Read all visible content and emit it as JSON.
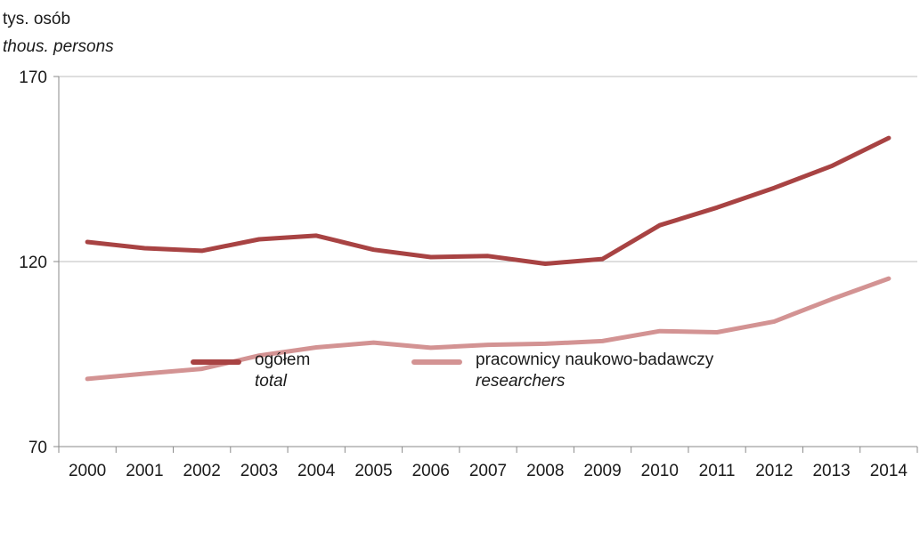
{
  "chart_data": {
    "type": "line",
    "unit_label": {
      "pl": "tys. osób",
      "en": "thous. persons"
    },
    "x": [
      "2000",
      "2001",
      "2002",
      "2003",
      "2004",
      "2005",
      "2006",
      "2007",
      "2008",
      "2009",
      "2010",
      "2011",
      "2012",
      "2013",
      "2014"
    ],
    "ylim": [
      70,
      170
    ],
    "yticks": [
      "70",
      "120",
      "170"
    ],
    "grid": {
      "horizontal": true,
      "vertical": false
    },
    "legend_placement": "bottom-center",
    "series": [
      {
        "name_pl": "ogółem",
        "name_en": "total",
        "color": "#a84343",
        "values": [
          125.3,
          123.6,
          122.9,
          126.0,
          127.0,
          123.2,
          121.2,
          121.5,
          119.4,
          120.7,
          129.8,
          134.6,
          139.9,
          145.8,
          153.4
        ]
      },
      {
        "name_pl": "pracownicy naukowo-badawczy",
        "name_en": "researchers",
        "color": "#d39393",
        "values": [
          88.3,
          89.7,
          91.0,
          94.6,
          96.8,
          98.1,
          96.7,
          97.5,
          97.8,
          98.5,
          101.2,
          100.9,
          103.8,
          109.8,
          115.4
        ]
      }
    ]
  }
}
